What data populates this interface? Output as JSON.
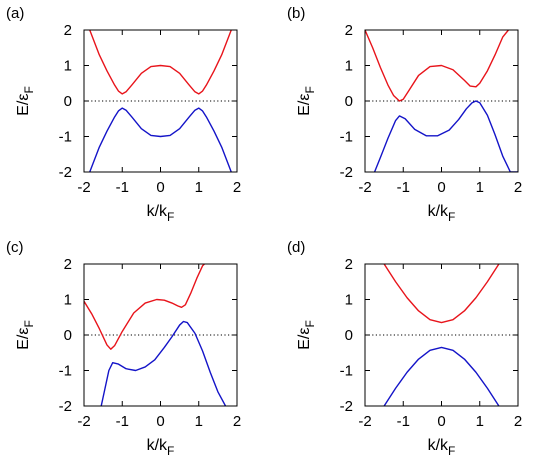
{
  "chart_data": [
    {
      "panel_label": "(a)",
      "type": "line",
      "xlabel_main": "k/k",
      "xlabel_sub": "F",
      "ylabel_main": "E/ε",
      "ylabel_sub": "F",
      "xlim": [
        -2,
        2
      ],
      "ylim": [
        -2,
        2
      ],
      "xticks": [
        "-2",
        "-1",
        "0",
        "1",
        "2"
      ],
      "yticks": [
        "-2",
        "-1",
        "0",
        "1",
        "2"
      ],
      "reference_line_y": 0,
      "series": [
        {
          "color": "#e8141b",
          "x": [
            -1.85,
            -1.6,
            -1.4,
            -1.2,
            -1.1,
            -1.0,
            -0.9,
            -0.75,
            -0.5,
            -0.25,
            0,
            0.25,
            0.5,
            0.75,
            0.9,
            1.0,
            1.1,
            1.2,
            1.4,
            1.6,
            1.85
          ],
          "y": [
            2.0,
            1.3,
            0.85,
            0.45,
            0.28,
            0.2,
            0.26,
            0.45,
            0.78,
            0.97,
            1.0,
            0.97,
            0.78,
            0.45,
            0.26,
            0.2,
            0.28,
            0.45,
            0.85,
            1.3,
            2.0
          ]
        },
        {
          "color": "#1414c8",
          "x": [
            -1.85,
            -1.6,
            -1.4,
            -1.2,
            -1.1,
            -1.0,
            -0.9,
            -0.75,
            -0.5,
            -0.25,
            0,
            0.25,
            0.5,
            0.75,
            0.9,
            1.0,
            1.1,
            1.2,
            1.4,
            1.6,
            1.85
          ],
          "y": [
            -2.0,
            -1.3,
            -0.85,
            -0.45,
            -0.28,
            -0.2,
            -0.26,
            -0.45,
            -0.78,
            -0.97,
            -1.0,
            -0.97,
            -0.78,
            -0.45,
            -0.26,
            -0.2,
            -0.28,
            -0.45,
            -0.85,
            -1.3,
            -2.0
          ]
        }
      ]
    },
    {
      "panel_label": "(b)",
      "type": "line",
      "xlabel_main": "k/k",
      "xlabel_sub": "F",
      "ylabel_main": "E/ε",
      "ylabel_sub": "F",
      "xlim": [
        -2,
        2
      ],
      "ylim": [
        -2,
        2
      ],
      "xticks": [
        "-2",
        "-1",
        "0",
        "1",
        "2"
      ],
      "yticks": [
        "-2",
        "-1",
        "0",
        "1",
        "2"
      ],
      "reference_line_y": 0,
      "series": [
        {
          "color": "#e8141b",
          "x": [
            -2.0,
            -1.8,
            -1.6,
            -1.4,
            -1.25,
            -1.1,
            -1.0,
            -0.85,
            -0.6,
            -0.3,
            0,
            0.3,
            0.6,
            0.75,
            0.9,
            1.0,
            1.2,
            1.4,
            1.6,
            1.75
          ],
          "y": [
            2.0,
            1.5,
            0.95,
            0.45,
            0.15,
            0.0,
            0.05,
            0.3,
            0.72,
            0.97,
            1.0,
            0.88,
            0.58,
            0.42,
            0.4,
            0.5,
            0.85,
            1.3,
            1.8,
            2.0
          ]
        },
        {
          "color": "#1414c8",
          "x": [
            -1.75,
            -1.6,
            -1.4,
            -1.2,
            -1.1,
            -0.95,
            -0.7,
            -0.4,
            -0.1,
            0.2,
            0.45,
            0.65,
            0.8,
            0.9,
            1.0,
            1.2,
            1.4,
            1.6,
            1.8,
            2.0
          ],
          "y": [
            -2.0,
            -1.6,
            -1.05,
            -0.55,
            -0.42,
            -0.5,
            -0.8,
            -0.98,
            -0.98,
            -0.82,
            -0.52,
            -0.22,
            -0.05,
            0.0,
            -0.05,
            -0.4,
            -0.95,
            -1.55,
            -2.0,
            -2.0
          ]
        }
      ]
    },
    {
      "panel_label": "(c)",
      "type": "line",
      "xlabel_main": "k/k",
      "xlabel_sub": "F",
      "ylabel_main": "E/ε",
      "ylabel_sub": "F",
      "xlim": [
        -2,
        2
      ],
      "ylim": [
        -2,
        2
      ],
      "xticks": [
        "-2",
        "-1",
        "0",
        "1",
        "2"
      ],
      "yticks": [
        "-2",
        "-1",
        "0",
        "1",
        "2"
      ],
      "reference_line_y": 0,
      "series": [
        {
          "color": "#e8141b",
          "x": [
            -2.0,
            -1.8,
            -1.6,
            -1.4,
            -1.3,
            -1.2,
            -1.0,
            -0.7,
            -0.4,
            -0.1,
            0.1,
            0.3,
            0.45,
            0.55,
            0.65,
            0.8,
            0.95,
            1.1,
            1.15
          ],
          "y": [
            0.95,
            0.6,
            0.18,
            -0.28,
            -0.4,
            -0.3,
            0.1,
            0.62,
            0.9,
            1.0,
            0.98,
            0.9,
            0.82,
            0.78,
            0.85,
            1.2,
            1.6,
            1.95,
            2.0
          ]
        },
        {
          "color": "#1414c8",
          "x": [
            -1.55,
            -1.45,
            -1.35,
            -1.25,
            -1.1,
            -0.9,
            -0.65,
            -0.4,
            -0.15,
            0.1,
            0.3,
            0.5,
            0.6,
            0.7,
            0.9,
            1.1,
            1.3,
            1.5,
            1.7
          ],
          "y": [
            -2.0,
            -1.5,
            -1.0,
            -0.78,
            -0.82,
            -0.95,
            -1.0,
            -0.9,
            -0.7,
            -0.35,
            -0.05,
            0.28,
            0.38,
            0.35,
            0.05,
            -0.45,
            -1.05,
            -1.6,
            -2.0
          ]
        }
      ]
    },
    {
      "panel_label": "(d)",
      "type": "line",
      "xlabel_main": "k/k",
      "xlabel_sub": "F",
      "ylabel_main": "E/ε",
      "ylabel_sub": "F",
      "xlim": [
        -2,
        2
      ],
      "ylim": [
        -2,
        2
      ],
      "xticks": [
        "-2",
        "-1",
        "0",
        "1",
        "2"
      ],
      "yticks": [
        "-2",
        "-1",
        "0",
        "1",
        "2"
      ],
      "reference_line_y": 0,
      "series": [
        {
          "color": "#e8141b",
          "x": [
            -1.5,
            -1.2,
            -0.9,
            -0.6,
            -0.3,
            0,
            0.3,
            0.6,
            0.9,
            1.2,
            1.5
          ],
          "y": [
            2.0,
            1.5,
            1.05,
            0.68,
            0.43,
            0.35,
            0.43,
            0.68,
            1.05,
            1.5,
            2.0
          ]
        },
        {
          "color": "#1414c8",
          "x": [
            -1.5,
            -1.2,
            -0.9,
            -0.6,
            -0.3,
            0,
            0.3,
            0.6,
            0.9,
            1.2,
            1.5
          ],
          "y": [
            -2.0,
            -1.5,
            -1.05,
            -0.68,
            -0.43,
            -0.35,
            -0.43,
            -0.68,
            -1.05,
            -1.5,
            -2.0
          ]
        }
      ]
    }
  ]
}
